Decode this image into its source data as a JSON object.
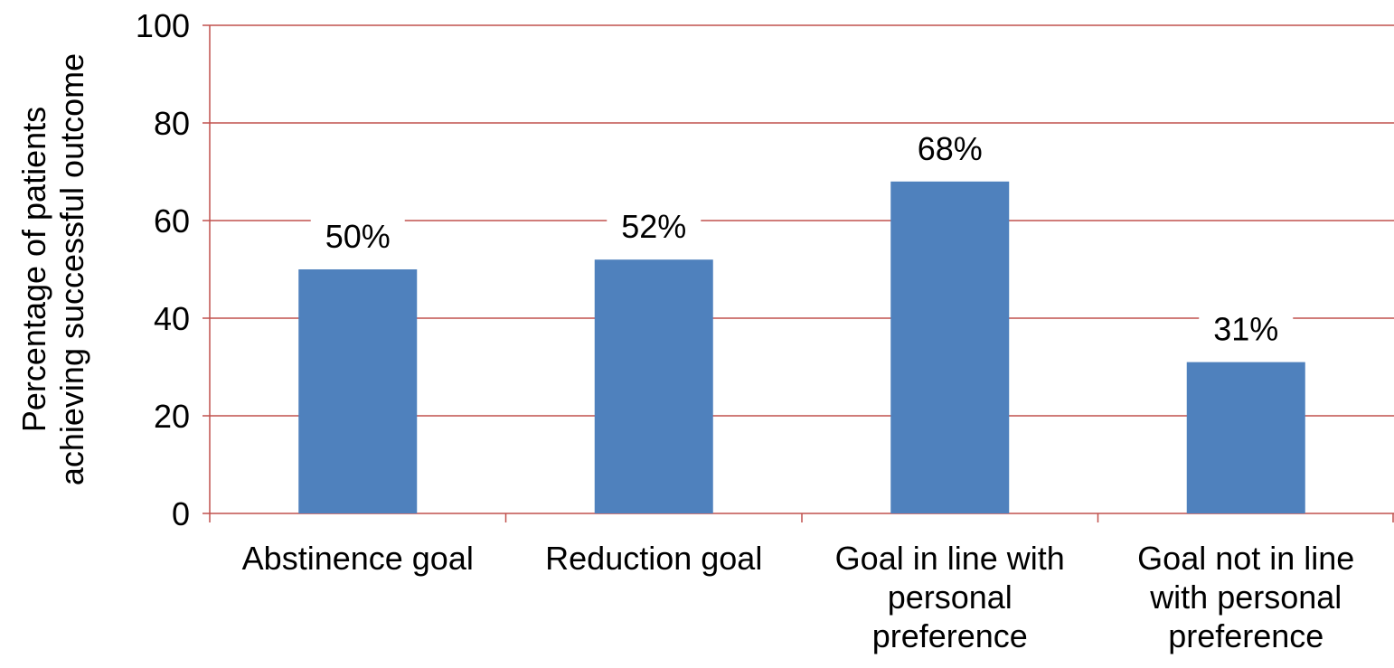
{
  "chart_data": {
    "type": "bar",
    "categories": [
      [
        "Abstinence goal"
      ],
      [
        "Reduction goal"
      ],
      [
        "Goal in line with",
        "personal",
        "preference"
      ],
      [
        "Goal not in line",
        "with personal",
        "preference"
      ]
    ],
    "values": [
      50,
      52,
      68,
      31
    ],
    "data_labels": [
      "50%",
      "52%",
      "68%",
      "31%"
    ],
    "ylabel": [
      "Percentage of patients",
      "achieving successful outcome"
    ],
    "ylim": [
      0,
      100
    ],
    "yticks": [
      0,
      20,
      40,
      60,
      80,
      100
    ],
    "grid": true,
    "colors": {
      "bar": "#4F81BD",
      "grid": "#C0504D",
      "axis": "#C0504D"
    }
  }
}
